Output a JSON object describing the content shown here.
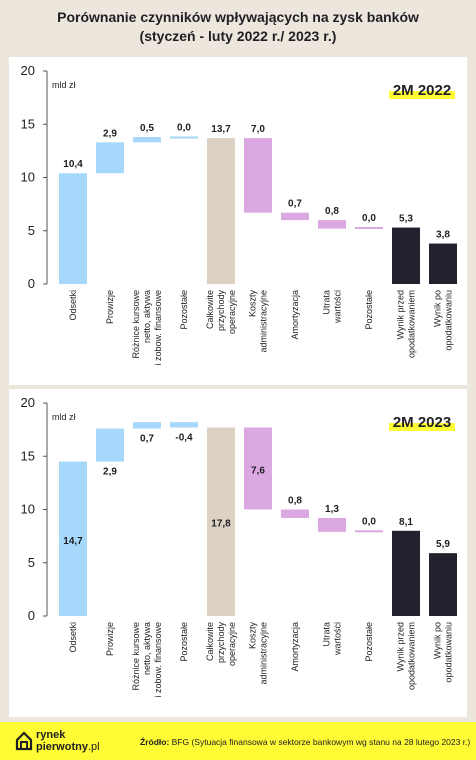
{
  "title_line1": "Porównanie czynników wpływających na zysk banków",
  "title_line2": "(styczeń - luty 2022 r./ 2023 r.)",
  "colors": {
    "increase": "#a6d8fb",
    "subtotal": "#ddd1c3",
    "cost": "#dca8e2",
    "result": "#22222e",
    "badge": "#fffb35"
  },
  "chart_data": [
    {
      "type": "bar",
      "subtype": "waterfall",
      "period_label": "2M 2022",
      "ylabel": "mld zł",
      "ylim": [
        0,
        20
      ],
      "yticks": [
        "0",
        "5",
        "10",
        "15",
        "20"
      ],
      "categories": [
        "Odsetki",
        "Prowizje",
        "Różnice kursowe netto, aktywa i zobow. finansowe",
        "Pozostałe",
        "Całkowite przychody operacyjne",
        "Koszty administracyjne",
        "Amortyzacja",
        "Utrata wartości",
        "Pozostałe",
        "Wynik przed opodatkowaniem",
        "Wynik po opodatkowaniu"
      ],
      "category_lines": [
        [
          "Odsetki"
        ],
        [
          "Prowizje"
        ],
        [
          "Różnice kursowe",
          "netto, aktywa",
          "i zobow. finansowe"
        ],
        [
          "Pozostałe"
        ],
        [
          "Całkowite",
          "przychody",
          "operacyjne"
        ],
        [
          "Koszty",
          "administracyjne"
        ],
        [
          "Amortyzacja"
        ],
        [
          "Utrata",
          "wartości"
        ],
        [
          "Pozostałe"
        ],
        [
          "Wynik przed",
          "opodatkowaniem"
        ],
        [
          "Wynik po",
          "opodatkowaniu"
        ]
      ],
      "values": [
        10.4,
        2.9,
        0.5,
        0.0,
        13.7,
        7.0,
        0.7,
        0.8,
        0.0,
        5.3,
        3.8
      ],
      "data_labels": [
        "10,4",
        "2,9",
        "0,5",
        "0,0",
        "13,7",
        "7,0",
        "0,7",
        "0,8",
        "0,0",
        "5,3",
        "3,8"
      ],
      "bars": [
        {
          "from": 0,
          "to": 10.4,
          "kind": "increase"
        },
        {
          "from": 10.4,
          "to": 13.3,
          "kind": "increase"
        },
        {
          "from": 13.3,
          "to": 13.8,
          "kind": "increase"
        },
        {
          "from": 13.7,
          "to": 13.85,
          "kind": "increase"
        },
        {
          "from": 0,
          "to": 13.7,
          "kind": "subtotal"
        },
        {
          "from": 13.7,
          "to": 6.7,
          "kind": "cost"
        },
        {
          "from": 6.7,
          "to": 6.0,
          "kind": "cost"
        },
        {
          "from": 6.0,
          "to": 5.2,
          "kind": "cost"
        },
        {
          "from": 5.35,
          "to": 5.2,
          "kind": "cost"
        },
        {
          "from": 0,
          "to": 5.3,
          "kind": "result"
        },
        {
          "from": 0,
          "to": 3.8,
          "kind": "result"
        }
      ],
      "label_pos": [
        "above",
        "above",
        "above",
        "above",
        "above",
        "above",
        "above",
        "above",
        "above",
        "above",
        "above"
      ]
    },
    {
      "type": "bar",
      "subtype": "waterfall",
      "period_label": "2M 2023",
      "ylabel": "mld zł",
      "ylim": [
        0,
        20
      ],
      "yticks": [
        "0",
        "5",
        "10",
        "15",
        "20"
      ],
      "categories": [
        "Odsetki",
        "Prowizje",
        "Różnice kursowe netto, aktywa i zobow. finansowe",
        "Pozostałe",
        "Całkowite przychody operacyjne",
        "Koszty administracyjne",
        "Amortyzacja",
        "Utrata wartości",
        "Pozostałe",
        "Wynik przed opodatkowaniem",
        "Wynik po opodatkowaniu"
      ],
      "category_lines": [
        [
          "Odsetki"
        ],
        [
          "Prowizje"
        ],
        [
          "Różnice kursowe",
          "netto, aktywa",
          "i zobow. finansowe"
        ],
        [
          "Pozostałe"
        ],
        [
          "Całkowite",
          "przychody",
          "operacyjne"
        ],
        [
          "Koszty",
          "administracyjne"
        ],
        [
          "Amortyzacja"
        ],
        [
          "Utrata",
          "wartości"
        ],
        [
          "Pozostałe"
        ],
        [
          "Wynik przed",
          "opodatkowaniem"
        ],
        [
          "Wynik po",
          "opodatkowaniu"
        ]
      ],
      "values": [
        14.7,
        2.9,
        0.7,
        -0.4,
        17.8,
        7.6,
        0.8,
        1.3,
        0.0,
        8.1,
        5.9
      ],
      "data_labels": [
        "14,7",
        "2,9",
        "0,7",
        "-0,4",
        "17,8",
        "7,6",
        "0,8",
        "1,3",
        "0,0",
        "8,1",
        "5,9"
      ],
      "bars": [
        {
          "from": 0,
          "to": 14.5,
          "kind": "increase"
        },
        {
          "from": 14.5,
          "to": 17.6,
          "kind": "increase"
        },
        {
          "from": 17.6,
          "to": 18.2,
          "kind": "increase"
        },
        {
          "from": 18.2,
          "to": 17.7,
          "kind": "increase"
        },
        {
          "from": 0,
          "to": 17.7,
          "kind": "subtotal"
        },
        {
          "from": 17.7,
          "to": 10.0,
          "kind": "cost"
        },
        {
          "from": 10.0,
          "to": 9.2,
          "kind": "cost"
        },
        {
          "from": 9.2,
          "to": 7.9,
          "kind": "cost"
        },
        {
          "from": 8.05,
          "to": 7.9,
          "kind": "cost"
        },
        {
          "from": 0,
          "to": 8.0,
          "kind": "result"
        },
        {
          "from": 0,
          "to": 5.9,
          "kind": "result"
        }
      ],
      "label_pos": [
        "inside",
        "below",
        "below",
        "below",
        "inside",
        "inside",
        "above",
        "above",
        "above",
        "above",
        "above"
      ]
    }
  ],
  "footer": {
    "logo_line1": "rynek",
    "logo_line2": "pierwotny",
    "logo_suffix": ".pl",
    "source_label": "Źródło:",
    "source_text": " BFG (Sytuacja finansowa w sektorze bankowym wg stanu na 28 lutego 2023 r.)"
  }
}
